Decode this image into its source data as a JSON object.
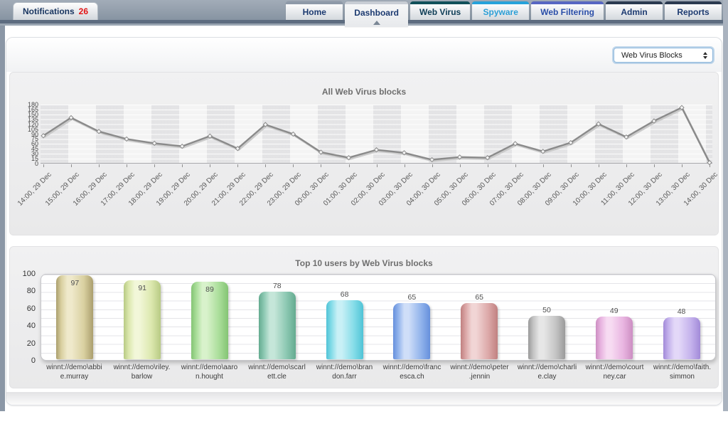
{
  "header": {
    "notifications": {
      "label": "Notifications",
      "count": "26"
    },
    "tabs": [
      {
        "label": "Home",
        "accent": "#8e99a8",
        "text_color": "#1c3a70",
        "active": false
      },
      {
        "label": "Dashboard",
        "accent": "#c8cdd4",
        "text_color": "#1c3a70",
        "active": true
      },
      {
        "label": "Web Virus",
        "accent": "#11505a",
        "text_color": "#0d3c55",
        "active": false
      },
      {
        "label": "Spyware",
        "accent": "#27a2da",
        "text_color": "#2b9fd6",
        "active": false
      },
      {
        "label": "Web Filtering",
        "accent": "#5766c2",
        "text_color": "#2a4ea8",
        "active": false
      },
      {
        "label": "Admin",
        "accent": "#2b3a50",
        "text_color": "#1c3a70",
        "active": false
      },
      {
        "label": "Reports",
        "accent": "#2b3a50",
        "text_color": "#1c3a70",
        "active": false
      }
    ]
  },
  "toolbar": {
    "report_select": {
      "value": "Web Virus Blocks"
    }
  },
  "chart_data": [
    {
      "type": "line",
      "title": "All Web Virus blocks",
      "x": [
        "14:00, 29 Dec",
        "15:00, 29 Dec",
        "16:00, 29 Dec",
        "17:00, 29 Dec",
        "18:00, 29 Dec",
        "19:00, 29 Dec",
        "20:00, 29 Dec",
        "21:00, 29 Dec",
        "22:00, 29 Dec",
        "23:00, 29 Dec",
        "00:00, 30 Dec",
        "01:00, 30 Dec",
        "02:00, 30 Dec",
        "03:00, 30 Dec",
        "04:00, 30 Dec",
        "05:00, 30 Dec",
        "06:00, 30 Dec",
        "07:00, 30 Dec",
        "08:00, 30 Dec",
        "09:00, 30 Dec",
        "10:00, 30 Dec",
        "11:00, 30 Dec",
        "12:00, 30 Dec",
        "13:00, 30 Dec",
        "14:00, 30 Dec"
      ],
      "values": [
        85,
        140,
        98,
        75,
        62,
        53,
        84,
        46,
        119,
        90,
        35,
        18,
        42,
        33,
        12,
        20,
        18,
        61,
        37,
        64,
        121,
        81,
        130,
        171,
        3
      ],
      "ylim": [
        0,
        180
      ],
      "yticks": [
        0,
        15,
        30,
        45,
        60,
        75,
        90,
        105,
        120,
        135,
        150,
        165,
        180
      ],
      "line_color": "#8a8a8a",
      "marker": "diamond",
      "grid": true,
      "legend": "none"
    },
    {
      "type": "bar",
      "title": "Top 10 users by Web Virus blocks",
      "categories": [
        [
          "winnt://demo\\abbi",
          "e.murray"
        ],
        [
          "winnt://demo\\riley.",
          "barlow"
        ],
        [
          "winnt://demo\\aaro",
          "n.hought"
        ],
        [
          "winnt://demo\\scarl",
          "ett.cle"
        ],
        [
          "winnt://demo\\bran",
          "don.farr"
        ],
        [
          "winnt://demo\\franc",
          "esca.ch"
        ],
        [
          "winnt://demo\\peter",
          ".jennin"
        ],
        [
          "winnt://demo\\charli",
          "e.clay"
        ],
        [
          "winnt://demo\\court",
          "ney.car"
        ],
        [
          "winnt://demo\\faith.",
          "simmon"
        ]
      ],
      "values": [
        97,
        91,
        89,
        78,
        68,
        65,
        65,
        50,
        49,
        48
      ],
      "ylim": [
        0,
        100
      ],
      "yticks": [
        0,
        20,
        40,
        60,
        80,
        100
      ],
      "bar_colors": [
        {
          "edge": "#ab9f6e",
          "mid": "#d9d0a0",
          "hi": "#efe9cb"
        },
        {
          "edge": "#b8ca84",
          "mid": "#dce8ae",
          "hi": "#f2f7d9"
        },
        {
          "edge": "#84c474",
          "mid": "#aade9a",
          "hi": "#d8f2cb"
        },
        {
          "edge": "#64ab90",
          "mid": "#8cc8b2",
          "hi": "#c5e6d9"
        },
        {
          "edge": "#50c3d6",
          "mid": "#84dce8",
          "hi": "#c8f0f6"
        },
        {
          "edge": "#6690dc",
          "mid": "#92b4ec",
          "hi": "#cfdef8"
        },
        {
          "edge": "#c08080",
          "mid": "#dca8a8",
          "hi": "#f1d5d5"
        },
        {
          "edge": "#9a9a9a",
          "mid": "#c4c4c4",
          "hi": "#e6e6e6"
        },
        {
          "edge": "#cc8ec2",
          "mid": "#e8b4e0",
          "hi": "#f7dbf2"
        },
        {
          "edge": "#a28ad8",
          "mid": "#c4b2ec",
          "hi": "#e3d8f8"
        }
      ],
      "grid": true,
      "legend": "none"
    }
  ]
}
